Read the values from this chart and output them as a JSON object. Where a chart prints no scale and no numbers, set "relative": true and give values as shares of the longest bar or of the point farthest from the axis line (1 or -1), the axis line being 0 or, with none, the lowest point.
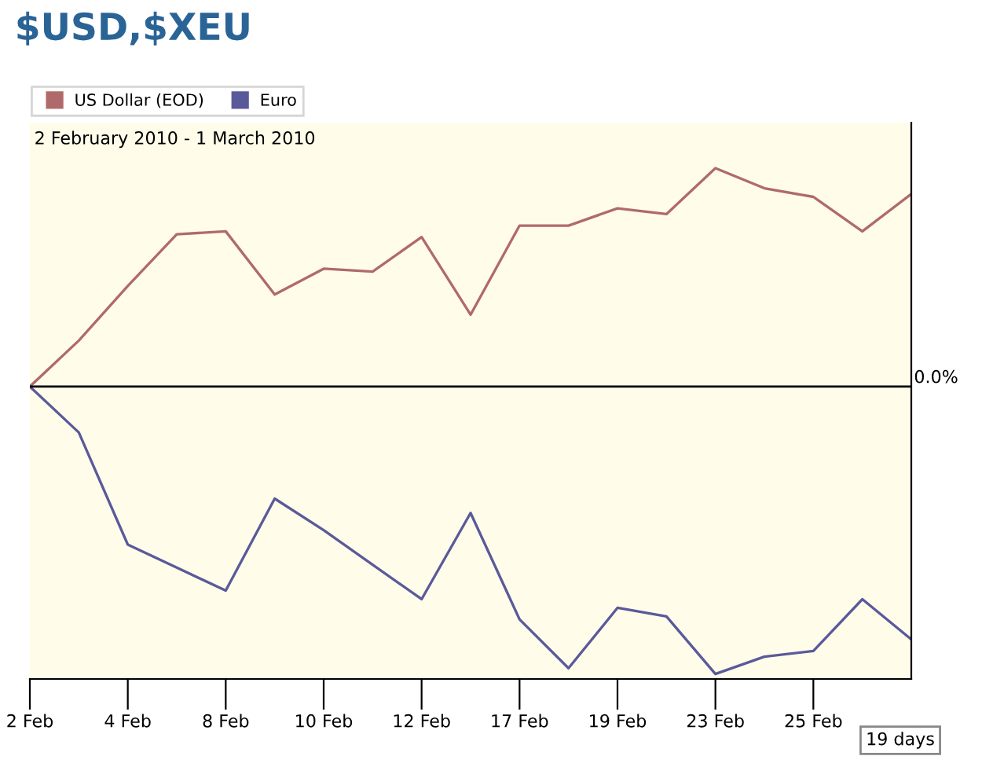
{
  "chart_data": {
    "type": "line",
    "title": "$USD,$XEU",
    "subtitle": "2 February 2010 - 1 March 2010",
    "relative": true,
    "legend": "top left",
    "grid": false,
    "categories": [
      "2 Feb",
      null,
      "4 Feb",
      null,
      "8 Feb",
      null,
      "10 Feb",
      null,
      "12 Feb",
      null,
      "17 Feb",
      null,
      "19 Feb",
      null,
      "23 Feb",
      null,
      "25 Feb",
      null,
      null
    ],
    "series": [
      {
        "name": "US Dollar (EOD)",
        "color": "#b06a6a",
        "values": [
          0,
          0.16,
          0.35,
          0.53,
          0.54,
          0.32,
          0.41,
          0.4,
          0.52,
          0.25,
          0.56,
          0.56,
          0.62,
          0.6,
          0.76,
          0.69,
          0.66,
          0.54,
          0.67
        ]
      },
      {
        "name": "Euro",
        "color": "#5a5a9a",
        "values": [
          0,
          -0.16,
          -0.55,
          -0.63,
          -0.71,
          -0.39,
          -0.5,
          -0.62,
          -0.74,
          -0.44,
          -0.81,
          -0.98,
          -0.77,
          -0.8,
          -1,
          -0.94,
          -0.92,
          -0.74,
          -0.88
        ]
      }
    ],
    "annotations": [
      "0.0%",
      "19 days"
    ]
  }
}
